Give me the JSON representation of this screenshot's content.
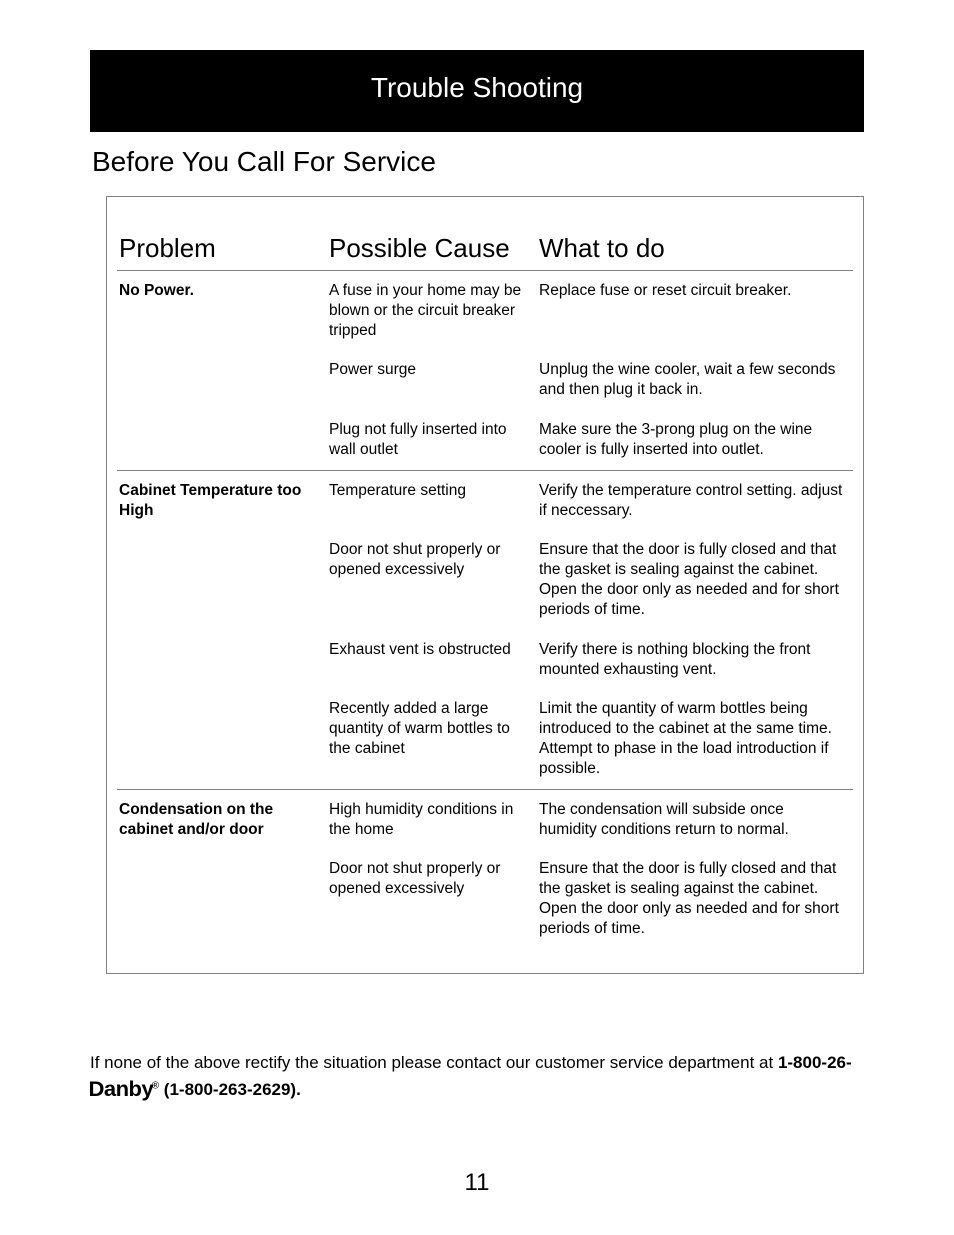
{
  "colors": {
    "title_bar_bg": "#000000",
    "title_bar_text": "#ffffff",
    "page_bg": "#ffffff",
    "text": "#000000",
    "border": "#808080"
  },
  "typography": {
    "title_fontsize": 28,
    "subheading_fontsize": 28,
    "th_fontsize": 26,
    "td_fontsize": 15.5,
    "footer_fontsize": 17,
    "pagenum_fontsize": 24
  },
  "title": "Trouble Shooting",
  "subheading": "Before You Call For Service",
  "columns": {
    "problem": "Problem",
    "cause": "Possible Cause",
    "what": "What to do"
  },
  "rows": [
    {
      "sep": false,
      "problem": "No Power.",
      "cause": "A fuse in your home may be blown or the circuit breaker tripped",
      "what": "Replace fuse or reset circuit breaker."
    },
    {
      "sep": false,
      "problem": "",
      "cause": "Power surge",
      "what": "Unplug the wine cooler, wait a few seconds and then plug it back in."
    },
    {
      "sep": false,
      "problem": "",
      "cause": "Plug not fully inserted into wall outlet",
      "what": "Make sure the 3-prong plug on the wine cooler is fully inserted into outlet."
    },
    {
      "sep": true,
      "problem": "Cabinet Temperature too High",
      "cause": "Temperature setting",
      "what": "Verify the temperature control setting. adjust if neccessary."
    },
    {
      "sep": false,
      "problem": "",
      "cause": "Door not shut properly or opened excessively",
      "what": "Ensure that the door is fully closed and that the gasket is sealing against the cabinet. Open the door only as needed and for short periods of time."
    },
    {
      "sep": false,
      "problem": "",
      "cause": "Exhaust vent is obstructed",
      "what": "Verify there is nothing blocking the front mounted exhausting vent."
    },
    {
      "sep": false,
      "problem": "",
      "cause": "Recently added a large quantity of warm bottles to the cabinet",
      "what": "Limit the quantity of warm bottles being introduced to the cabinet at the same time.  Attempt to phase in the load introduction if possible."
    },
    {
      "sep": true,
      "problem": "Condensation on the cabinet and/or door",
      "cause": "High humidity conditions in the home",
      "what": "The condensation will subside once humidity conditions return to normal."
    },
    {
      "sep": false,
      "problem": "",
      "cause": "Door not shut properly or opened excessively",
      "what": "Ensure that the door is fully closed and that the gasket is sealing against the cabinet.  Open the door only as needed and for short periods of time."
    }
  ],
  "footer": {
    "pretext": "If none of the above rectify the situation please contact our customer service department at ",
    "phone_prefix": "1-800-26- ",
    "brand": "Danby",
    "brand_reg": "®",
    "phone_suffix": "  (1-800-263-2629)."
  },
  "page_number": "11"
}
